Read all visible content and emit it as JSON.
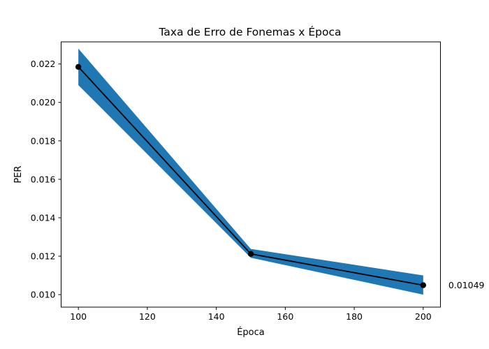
{
  "chart_data": {
    "type": "line",
    "title": "Taxa de Erro de Fonemas x Época",
    "xlabel": "Época",
    "ylabel": "PER",
    "x": [
      100,
      150,
      200
    ],
    "series": [
      {
        "values": [
          0.02185,
          0.01212,
          0.01049
        ],
        "lower": [
          0.0209,
          0.01192,
          0.01
        ],
        "upper": [
          0.0228,
          0.01238,
          0.011
        ],
        "line_color": "#000000",
        "band_color": "#1f77b4"
      }
    ],
    "xlim": [
      95,
      205
    ],
    "ylim": [
      0.00935,
      0.02315
    ],
    "xticks": [
      100,
      120,
      140,
      160,
      180,
      200
    ],
    "yticks": [
      0.01,
      0.012,
      0.014,
      0.016,
      0.018,
      0.02,
      0.022
    ],
    "ytick_labels": [
      "0.010",
      "0.012",
      "0.014",
      "0.016",
      "0.018",
      "0.020",
      "0.022"
    ],
    "annotations": [
      {
        "x": 200,
        "y": 0.01049,
        "text": "0.01049"
      }
    ],
    "grid": false,
    "legend": "none"
  }
}
